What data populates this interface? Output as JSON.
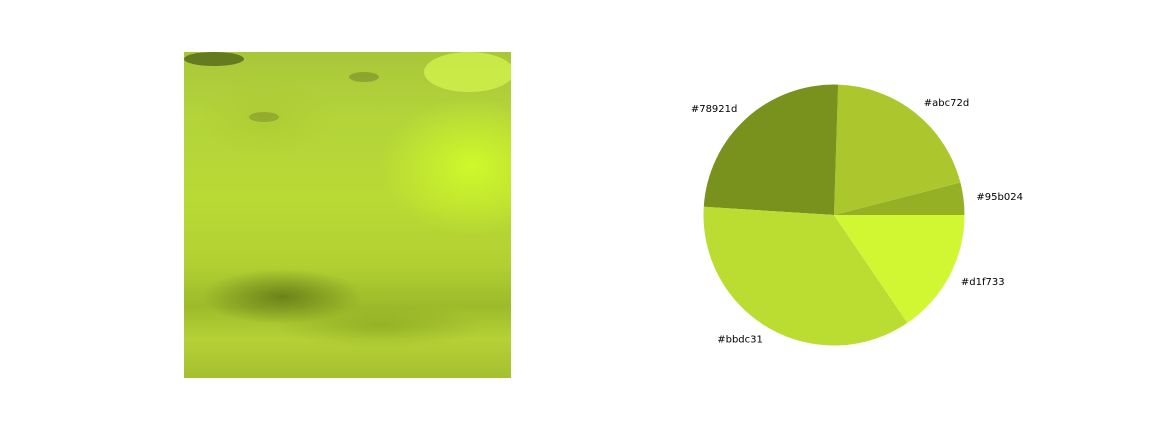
{
  "chart_data": {
    "type": "pie",
    "slices": [
      {
        "label": "#95b024",
        "value": 4,
        "color": "#95b024"
      },
      {
        "label": "#abc72d",
        "value": 20.5,
        "color": "#abc72d"
      },
      {
        "label": "#78921d",
        "value": 24.5,
        "color": "#78921d"
      },
      {
        "label": "#bbdc31",
        "value": 35.5,
        "color": "#bbdc31"
      },
      {
        "label": "#d1f733",
        "value": 15.5,
        "color": "#d1f733"
      }
    ]
  }
}
